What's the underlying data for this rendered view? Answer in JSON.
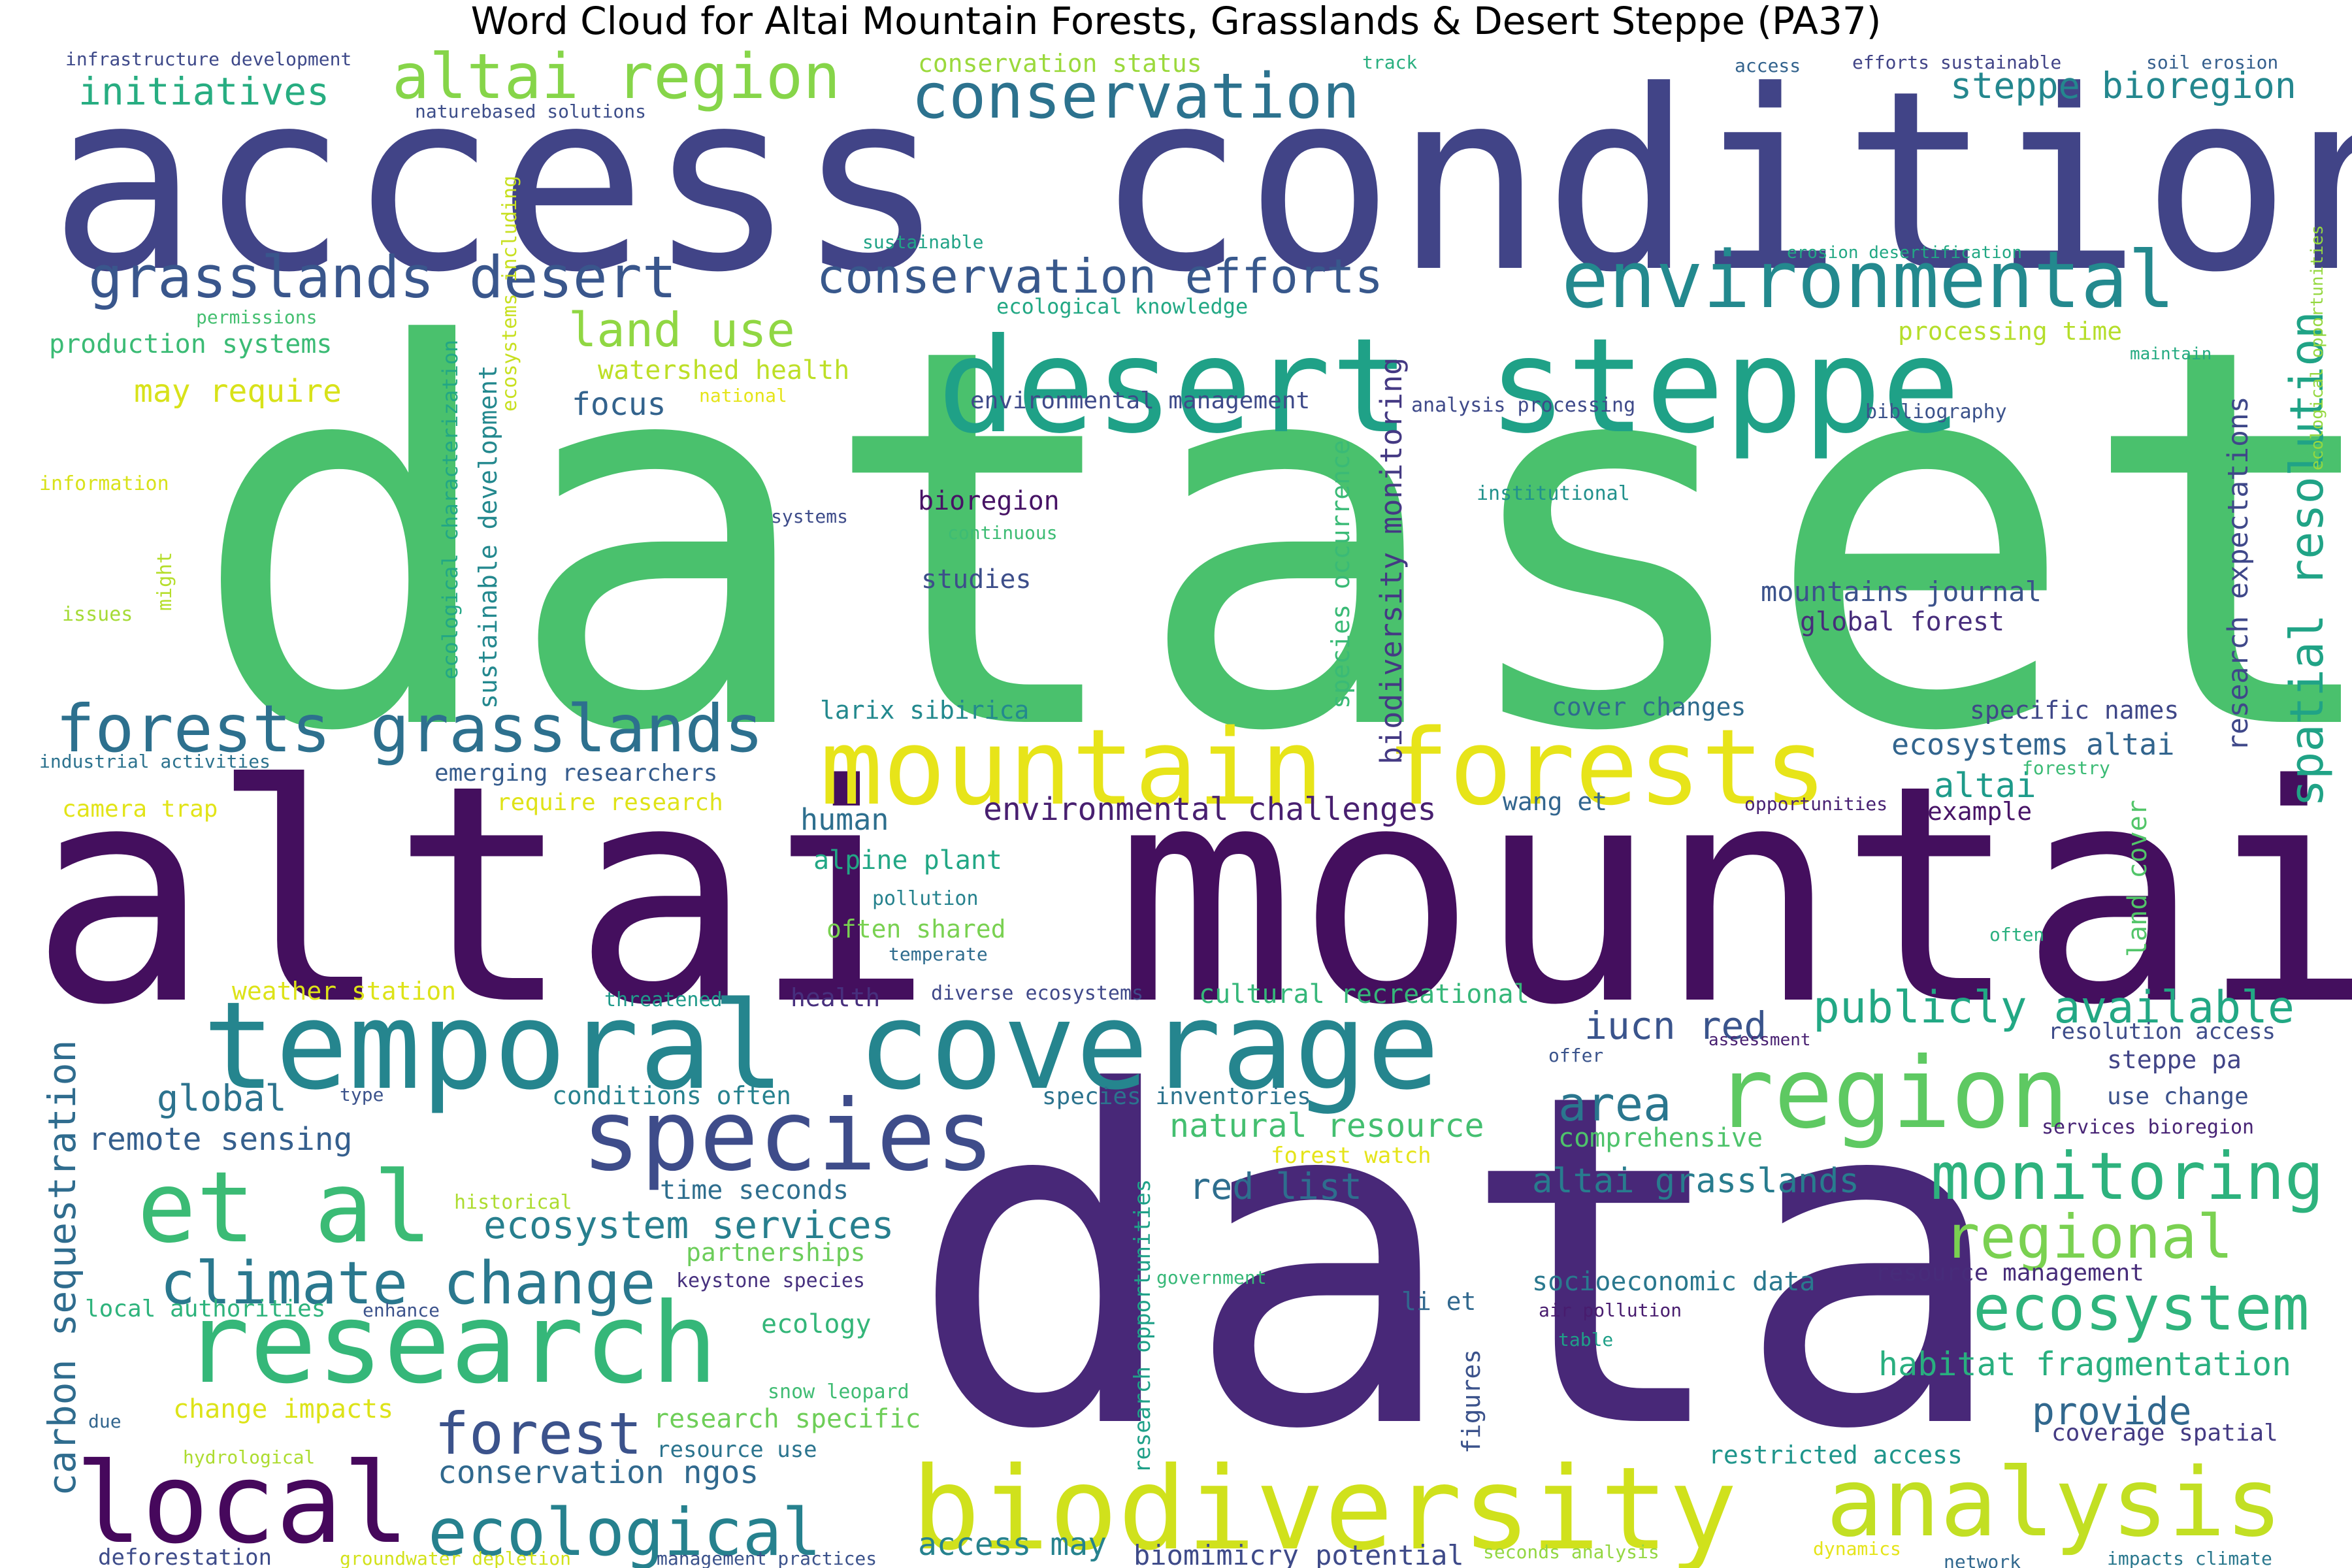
{
  "chart_data": {
    "type": "wordcloud",
    "title": "Word Cloud for Altai Mountain Forests, Grasslands & Desert Steppe (PA37)",
    "palette": "viridis",
    "words": [
      {
        "text": "dataset",
        "weight": 100,
        "color": "#4ac16d"
      },
      {
        "text": "data",
        "weight": 90,
        "color": "#482878"
      },
      {
        "text": "altai mountain",
        "weight": 68,
        "color": "#440f5e"
      },
      {
        "text": "access conditions",
        "weight": 62,
        "color": "#414487"
      },
      {
        "text": "desert steppe",
        "weight": 40,
        "color": "#1fa187"
      },
      {
        "text": "mountain forests",
        "weight": 37,
        "color": "#e7e419"
      },
      {
        "text": "temporal coverage",
        "weight": 37,
        "color": "#25858e"
      },
      {
        "text": "biodiversity",
        "weight": 35,
        "color": "#d0e11c"
      },
      {
        "text": "research",
        "weight": 35,
        "color": "#35b779"
      },
      {
        "text": "local",
        "weight": 34,
        "color": "#46085c"
      },
      {
        "text": "species",
        "weight": 31,
        "color": "#3e4c8a"
      },
      {
        "text": "et al",
        "weight": 31,
        "color": "#3bbb75"
      },
      {
        "text": "region",
        "weight": 31,
        "color": "#5ec962"
      },
      {
        "text": "analysis",
        "weight": 30,
        "color": "#c2df23"
      },
      {
        "text": "environmental",
        "weight": 25,
        "color": "#23898e"
      },
      {
        "text": "monitoring",
        "weight": 21,
        "color": "#2db27d"
      },
      {
        "text": "ecosystem",
        "weight": 20,
        "color": "#2fb47c"
      },
      {
        "text": "conservation",
        "weight": 20,
        "color": "#2c728e"
      },
      {
        "text": "forests grasslands",
        "weight": 20,
        "color": "#2d708e"
      },
      {
        "text": "ecological",
        "weight": 19,
        "color": "#26818e"
      },
      {
        "text": "altai region",
        "weight": 19,
        "color": "#86d549"
      },
      {
        "text": "climate change",
        "weight": 19,
        "color": "#2a788e"
      },
      {
        "text": "regional",
        "weight": 19,
        "color": "#7ad151"
      },
      {
        "text": "forest",
        "weight": 18,
        "color": "#3b528b"
      },
      {
        "text": "grasslands desert",
        "weight": 18,
        "color": "#39568c"
      },
      {
        "text": "conservation efforts",
        "weight": 16,
        "color": "#38588c"
      },
      {
        "text": "publicly available",
        "weight": 15,
        "color": "#22a884"
      },
      {
        "text": "spatial resolution",
        "weight": 15,
        "color": "#20a386"
      },
      {
        "text": "land use",
        "weight": 15,
        "color": "#90d743"
      },
      {
        "text": "area",
        "weight": 15,
        "color": "#2a768e"
      },
      {
        "text": "provide",
        "weight": 12,
        "color": "#31688e"
      },
      {
        "text": "ecosystem services",
        "weight": 12,
        "color": "#277f8e"
      },
      {
        "text": "habitat fragmentation",
        "weight": 12,
        "color": "#29af7f"
      },
      {
        "text": "altai grasslands",
        "weight": 12,
        "color": "#287c8e"
      },
      {
        "text": "red list",
        "weight": 12,
        "color": "#2e6e8e"
      },
      {
        "text": "carbon sequestration",
        "weight": 12,
        "color": "#2f6c8e"
      },
      {
        "text": "iucn red",
        "weight": 12,
        "color": "#3a548c"
      },
      {
        "text": "initiatives",
        "weight": 12,
        "color": "#27ad81"
      },
      {
        "text": "steppe bioregion",
        "weight": 12,
        "color": "#24878e"
      },
      {
        "text": "natural resource",
        "weight": 11,
        "color": "#44bf70"
      },
      {
        "text": "global",
        "weight": 11,
        "color": "#2c738e"
      },
      {
        "text": "conservation ngos",
        "weight": 11,
        "color": "#30698e"
      },
      {
        "text": "biodiversity monitoring",
        "weight": 11,
        "color": "#443983"
      },
      {
        "text": "research expectations",
        "weight": 10,
        "color": "#3f4889"
      },
      {
        "text": "environmental challenges",
        "weight": 10,
        "color": "#481f70"
      },
      {
        "text": "ecosystems altai",
        "weight": 10,
        "color": "#32658e"
      },
      {
        "text": "remote sensing",
        "weight": 10,
        "color": "#355f8d"
      },
      {
        "text": "access may",
        "weight": 10,
        "color": "#26828e"
      },
      {
        "text": "altai",
        "weight": 10,
        "color": "#1e9b8a"
      },
      {
        "text": "focus",
        "weight": 10,
        "color": "#33638d"
      },
      {
        "text": "human",
        "weight": 10,
        "color": "#2e6f8e"
      },
      {
        "text": "watershed health",
        "weight": 9,
        "color": "#bddf26"
      },
      {
        "text": "change impacts",
        "weight": 9,
        "color": "#dde318"
      },
      {
        "text": "may require",
        "weight": 9,
        "color": "#d8e219"
      },
      {
        "text": "socioeconomic data",
        "weight": 9,
        "color": "#2a788e"
      },
      {
        "text": "sustainable development",
        "weight": 9,
        "color": "#23888e"
      },
      {
        "text": "mountains journal",
        "weight": 9,
        "color": "#3b528b"
      },
      {
        "text": "biomimicry potential",
        "weight": 9,
        "color": "#3e4a89"
      },
      {
        "text": "research specific",
        "weight": 9,
        "color": "#6ece58"
      },
      {
        "text": "cultural recreational",
        "weight": 9,
        "color": "#35b779"
      },
      {
        "text": "species occurrence",
        "weight": 9,
        "color": "#3aba76"
      },
      {
        "text": "comprehensive",
        "weight": 9,
        "color": "#4ec36b"
      },
      {
        "text": "production systems",
        "weight": 9,
        "color": "#3bbb75"
      },
      {
        "text": "global forest",
        "weight": 9,
        "color": "#472d7b"
      },
      {
        "text": "bioregion",
        "weight": 9,
        "color": "#471365"
      },
      {
        "text": "studies",
        "weight": 9,
        "color": "#3d4e8a"
      },
      {
        "text": "alpine plant",
        "weight": 9,
        "color": "#22a785"
      },
      {
        "text": "ecology",
        "weight": 9,
        "color": "#34b679"
      },
      {
        "text": "specific names",
        "weight": 9,
        "color": "#3f4788"
      },
      {
        "text": "land cover",
        "weight": 9,
        "color": "#52c569"
      },
      {
        "text": "resource management",
        "weight": 9,
        "color": "#472c7a"
      },
      {
        "text": "coverage spatial",
        "weight": 9,
        "color": "#443a83"
      },
      {
        "text": "restricted access",
        "weight": 9,
        "color": "#1f958b"
      },
      {
        "text": "time seconds",
        "weight": 9,
        "color": "#2e6e8e"
      },
      {
        "text": "use change",
        "weight": 9,
        "color": "#3b518b"
      },
      {
        "text": "steppe pa",
        "weight": 9,
        "color": "#414487"
      },
      {
        "text": "partnerships",
        "weight": 8,
        "color": "#6ccd5a"
      },
      {
        "text": "conditions often",
        "weight": 8,
        "color": "#26818e"
      },
      {
        "text": "larix sibirica",
        "weight": 8,
        "color": "#23898e"
      },
      {
        "text": "cover changes",
        "weight": 8,
        "color": "#2f6b8e"
      },
      {
        "text": "wang et",
        "weight": 8,
        "color": "#32658e"
      },
      {
        "text": "example",
        "weight": 8,
        "color": "#481467"
      },
      {
        "text": "emerging researchers",
        "weight": 8,
        "color": "#365c8d"
      },
      {
        "text": "ecological characterization",
        "weight": 8,
        "color": "#22a785"
      },
      {
        "text": "environmental management",
        "weight": 8,
        "color": "#3e4a89"
      },
      {
        "text": "species inventories",
        "weight": 8,
        "color": "#2c738e"
      },
      {
        "text": "health",
        "weight": 8,
        "color": "#472f7d"
      },
      {
        "text": "often shared",
        "weight": 8,
        "color": "#79d151"
      },
      {
        "text": "research opportunities",
        "weight": 8,
        "color": "#1fa088"
      },
      {
        "text": "figures",
        "weight": 8,
        "color": "#3b528b"
      },
      {
        "text": "forest watch",
        "weight": 8,
        "color": "#e5e419"
      },
      {
        "text": "weather station",
        "weight": 8,
        "color": "#dde318"
      },
      {
        "text": "conservation status",
        "weight": 8,
        "color": "#9bd93c"
      },
      {
        "text": "local authorities",
        "weight": 8,
        "color": "#2eb37c"
      },
      {
        "text": "processing time",
        "weight": 8,
        "color": "#b5de2b"
      },
      {
        "text": "require research",
        "weight": 8,
        "color": "#dfe318"
      },
      {
        "text": "camera trap",
        "weight": 8,
        "color": "#e2e418"
      },
      {
        "text": "resolution access",
        "weight": 8,
        "color": "#3e4c8a"
      },
      {
        "text": "services bioregion",
        "weight": 7,
        "color": "#482475"
      },
      {
        "text": "li et",
        "weight": 7,
        "color": "#31688e"
      },
      {
        "text": "ecosystems including",
        "weight": 7,
        "color": "#c8e020"
      },
      {
        "text": "keystone species",
        "weight": 7,
        "color": "#46307e"
      },
      {
        "text": "diverse ecosystems",
        "weight": 7,
        "color": "#3f4889"
      },
      {
        "text": "historical",
        "weight": 7,
        "color": "#addc30"
      },
      {
        "text": "pollution",
        "weight": 7,
        "color": "#26828e"
      },
      {
        "text": "resource use",
        "weight": 7,
        "color": "#2b748e"
      },
      {
        "text": "snow leopard",
        "weight": 7,
        "color": "#3fbc73"
      },
      {
        "text": "ecological knowledge",
        "weight": 7,
        "color": "#22a884"
      },
      {
        "text": "temperate",
        "weight": 7,
        "color": "#2f6c8e"
      },
      {
        "text": "threatened",
        "weight": 7,
        "color": "#1f9a8a"
      },
      {
        "text": "bibliography",
        "weight": 7,
        "color": "#3b528b"
      },
      {
        "text": "institutional",
        "weight": 7,
        "color": "#21918c"
      },
      {
        "text": "analysis processing",
        "weight": 7,
        "color": "#3e4989"
      },
      {
        "text": "offer",
        "weight": 7,
        "color": "#3a538b"
      },
      {
        "text": "assessment",
        "weight": 6,
        "color": "#482071"
      },
      {
        "text": "air pollution",
        "weight": 6,
        "color": "#481c6e"
      },
      {
        "text": "table",
        "weight": 6,
        "color": "#1fa088"
      },
      {
        "text": "government",
        "weight": 6,
        "color": "#37b878"
      },
      {
        "text": "enhance",
        "weight": 6,
        "color": "#3b528b"
      },
      {
        "text": "sustainable",
        "weight": 6,
        "color": "#20a386"
      },
      {
        "text": "continuous",
        "weight": 6,
        "color": "#3dbc74"
      },
      {
        "text": "systems",
        "weight": 6,
        "color": "#3e4c8a"
      },
      {
        "text": "permissions",
        "weight": 6,
        "color": "#44bf70"
      },
      {
        "text": "national",
        "weight": 6,
        "color": "#e5e419"
      },
      {
        "text": "information",
        "weight": 6,
        "color": "#d8e219"
      },
      {
        "text": "might",
        "weight": 6,
        "color": "#b5de2b"
      },
      {
        "text": "issues",
        "weight": 6,
        "color": "#a5db36"
      },
      {
        "text": "industrial activities",
        "weight": 6,
        "color": "#2c728e"
      },
      {
        "text": "type",
        "weight": 6,
        "color": "#3b528b"
      },
      {
        "text": "due",
        "weight": 6,
        "color": "#32658e"
      },
      {
        "text": "hydrological",
        "weight": 6,
        "color": "#addc30"
      },
      {
        "text": "groundwater depletion",
        "weight": 6,
        "color": "#d2e21b"
      },
      {
        "text": "management practices",
        "weight": 6,
        "color": "#3b528b"
      },
      {
        "text": "seconds analysis",
        "weight": 6,
        "color": "#93d741"
      },
      {
        "text": "dynamics",
        "weight": 6,
        "color": "#e5e419"
      },
      {
        "text": "network",
        "weight": 6,
        "color": "#31688e"
      },
      {
        "text": "impacts climate",
        "weight": 6,
        "color": "#2a788e"
      },
      {
        "text": "deforestation",
        "weight": 7,
        "color": "#3e4c8a"
      },
      {
        "text": "forestry",
        "weight": 6,
        "color": "#3bbb75"
      },
      {
        "text": "opportunities",
        "weight": 6,
        "color": "#482173"
      },
      {
        "text": "often",
        "weight": 6,
        "color": "#2ab07f"
      },
      {
        "text": "erosion desertification",
        "weight": 6,
        "color": "#22a884"
      },
      {
        "text": "maintain",
        "weight": 6,
        "color": "#25ab82"
      },
      {
        "text": "ecological opportunities",
        "weight": 6,
        "color": "#95d840"
      },
      {
        "text": "soil erosion",
        "weight": 6,
        "color": "#355f8d"
      },
      {
        "text": "efforts sustainable",
        "weight": 6,
        "color": "#414487"
      },
      {
        "text": "access",
        "weight": 6,
        "color": "#33638d"
      },
      {
        "text": "track",
        "weight": 6,
        "color": "#29af7f"
      },
      {
        "text": "infrastructure development",
        "weight": 6,
        "color": "#3e4989"
      },
      {
        "text": "naturebased solutions",
        "weight": 6,
        "color": "#3d4e8a"
      }
    ]
  }
}
